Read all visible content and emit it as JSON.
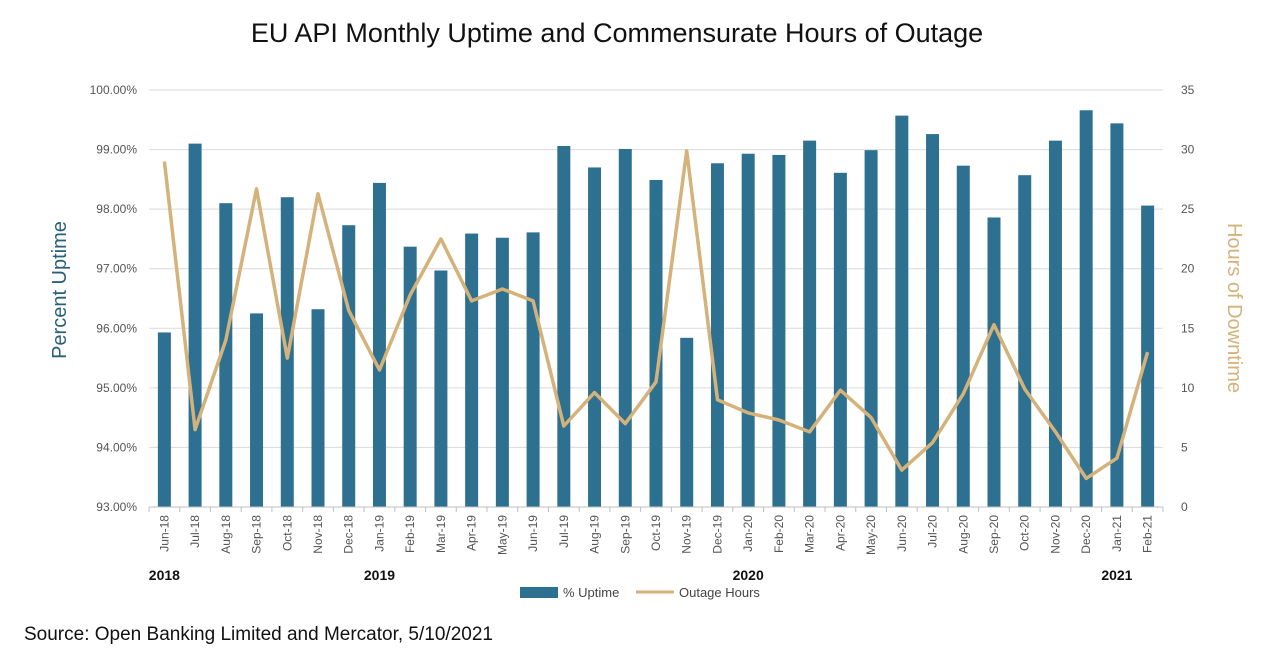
{
  "source_note": "Source: Open Banking Limited and Mercator, 5/10/2021",
  "chart_data": {
    "type": "bar+line",
    "title": "EU API Monthly Uptime and Commensurate Hours of Outage",
    "ylabel_left": "Percent Uptime",
    "ylabel_right": "Hours of Downtime",
    "y_left_range": [
      93.0,
      100.0
    ],
    "y_left_ticks": [
      "93.00%",
      "94.00%",
      "95.00%",
      "96.00%",
      "97.00%",
      "98.00%",
      "99.00%",
      "100.00%"
    ],
    "y_right_range": [
      0,
      35
    ],
    "y_right_ticks": [
      "0",
      "5",
      "10",
      "15",
      "20",
      "25",
      "30",
      "35"
    ],
    "categories": [
      "Jun-18",
      "Jul-18",
      "Aug-18",
      "Sep-18",
      "Oct-18",
      "Nov-18",
      "Dec-18",
      "Jan-19",
      "Feb-19",
      "Mar-19",
      "Apr-19",
      "May-19",
      "Jun-19",
      "Jul-19",
      "Aug-19",
      "Sep-19",
      "Oct-19",
      "Nov-19",
      "Dec-19",
      "Jan-20",
      "Feb-20",
      "Mar-20",
      "Apr-20",
      "May-20",
      "Jun-20",
      "Jul-20",
      "Aug-20",
      "Sep-20",
      "Oct-20",
      "Nov-20",
      "Dec-20",
      "Jan-21",
      "Feb-21"
    ],
    "year_labels": [
      {
        "label": "2018",
        "category": "Jun-18"
      },
      {
        "label": "2019",
        "category": "Jan-19"
      },
      {
        "label": "2020",
        "category": "Jan-20"
      },
      {
        "label": "2021",
        "category": "Jan-21"
      }
    ],
    "series": [
      {
        "name": "% Uptime",
        "type": "bar",
        "axis": "left",
        "color": "#2e7090",
        "values": [
          95.93,
          99.1,
          98.1,
          96.25,
          98.2,
          96.32,
          97.73,
          98.44,
          97.37,
          96.97,
          97.59,
          97.52,
          97.61,
          99.06,
          98.7,
          99.01,
          98.49,
          95.84,
          98.77,
          98.93,
          98.91,
          99.15,
          98.61,
          98.99,
          99.57,
          99.26,
          98.73,
          97.86,
          98.57,
          99.15,
          99.66,
          99.44,
          98.06
        ]
      },
      {
        "name": "Outage Hours",
        "type": "line",
        "axis": "right",
        "color": "#d4b27a",
        "values": [
          29.0,
          6.5,
          14.0,
          26.7,
          12.5,
          26.3,
          16.5,
          11.5,
          17.8,
          22.5,
          17.3,
          18.3,
          17.3,
          6.8,
          9.6,
          7.0,
          10.5,
          29.9,
          9.0,
          7.9,
          7.3,
          6.3,
          9.8,
          7.5,
          3.1,
          5.4,
          9.5,
          15.3,
          9.9,
          6.3,
          2.4,
          4.1,
          13.0
        ]
      }
    ],
    "legend_position": "bottom",
    "grid": true
  }
}
